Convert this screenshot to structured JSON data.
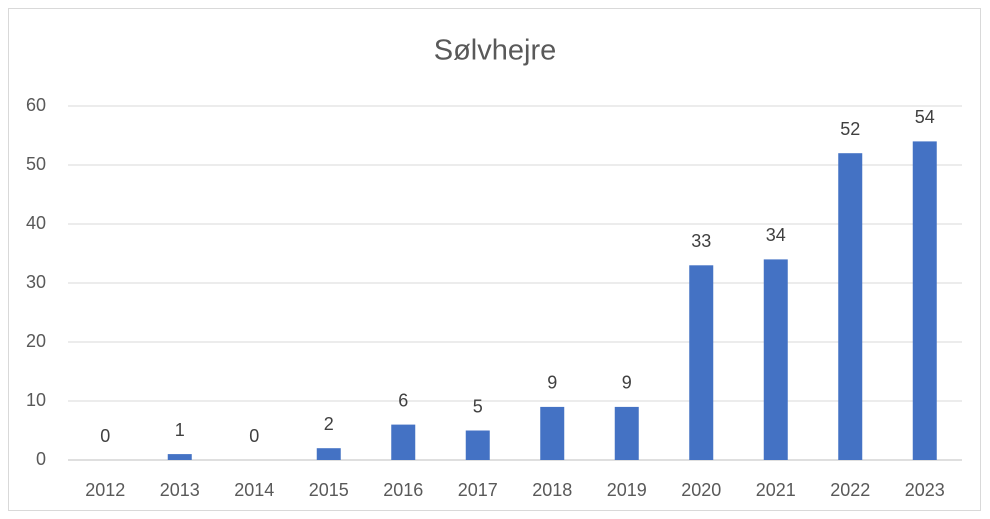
{
  "chart_data": {
    "type": "bar",
    "title": "Sølvhejre",
    "categories": [
      "2012",
      "2013",
      "2014",
      "2015",
      "2016",
      "2017",
      "2018",
      "2019",
      "2020",
      "2021",
      "2022",
      "2023"
    ],
    "values": [
      0,
      1,
      0,
      2,
      6,
      5,
      9,
      9,
      33,
      34,
      52,
      54
    ],
    "color": "#4472c4",
    "ylim": [
      0,
      60
    ],
    "yticks": [
      0,
      10,
      20,
      30,
      40,
      50,
      60
    ],
    "grid": true
  }
}
